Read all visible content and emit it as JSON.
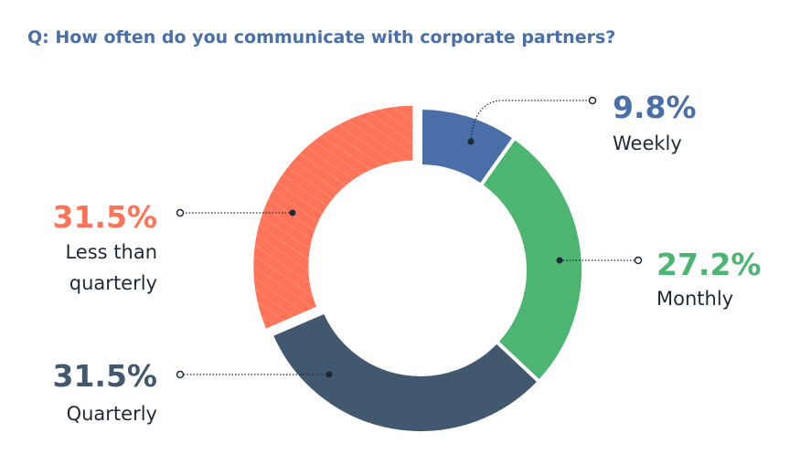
{
  "chart_data": {
    "type": "donut",
    "title": "Q: How often do you communicate with corporate partners?",
    "categories": [
      "Weekly",
      "Monthly",
      "Quarterly",
      "Less than quarterly"
    ],
    "values": [
      9.8,
      27.2,
      31.5,
      31.5
    ],
    "value_labels": [
      "9.8%",
      "27.2%",
      "31.5%",
      "31.5%"
    ],
    "colors": [
      "#4a6fa8",
      "#4bb571",
      "#42586e",
      "#ff7358"
    ]
  }
}
